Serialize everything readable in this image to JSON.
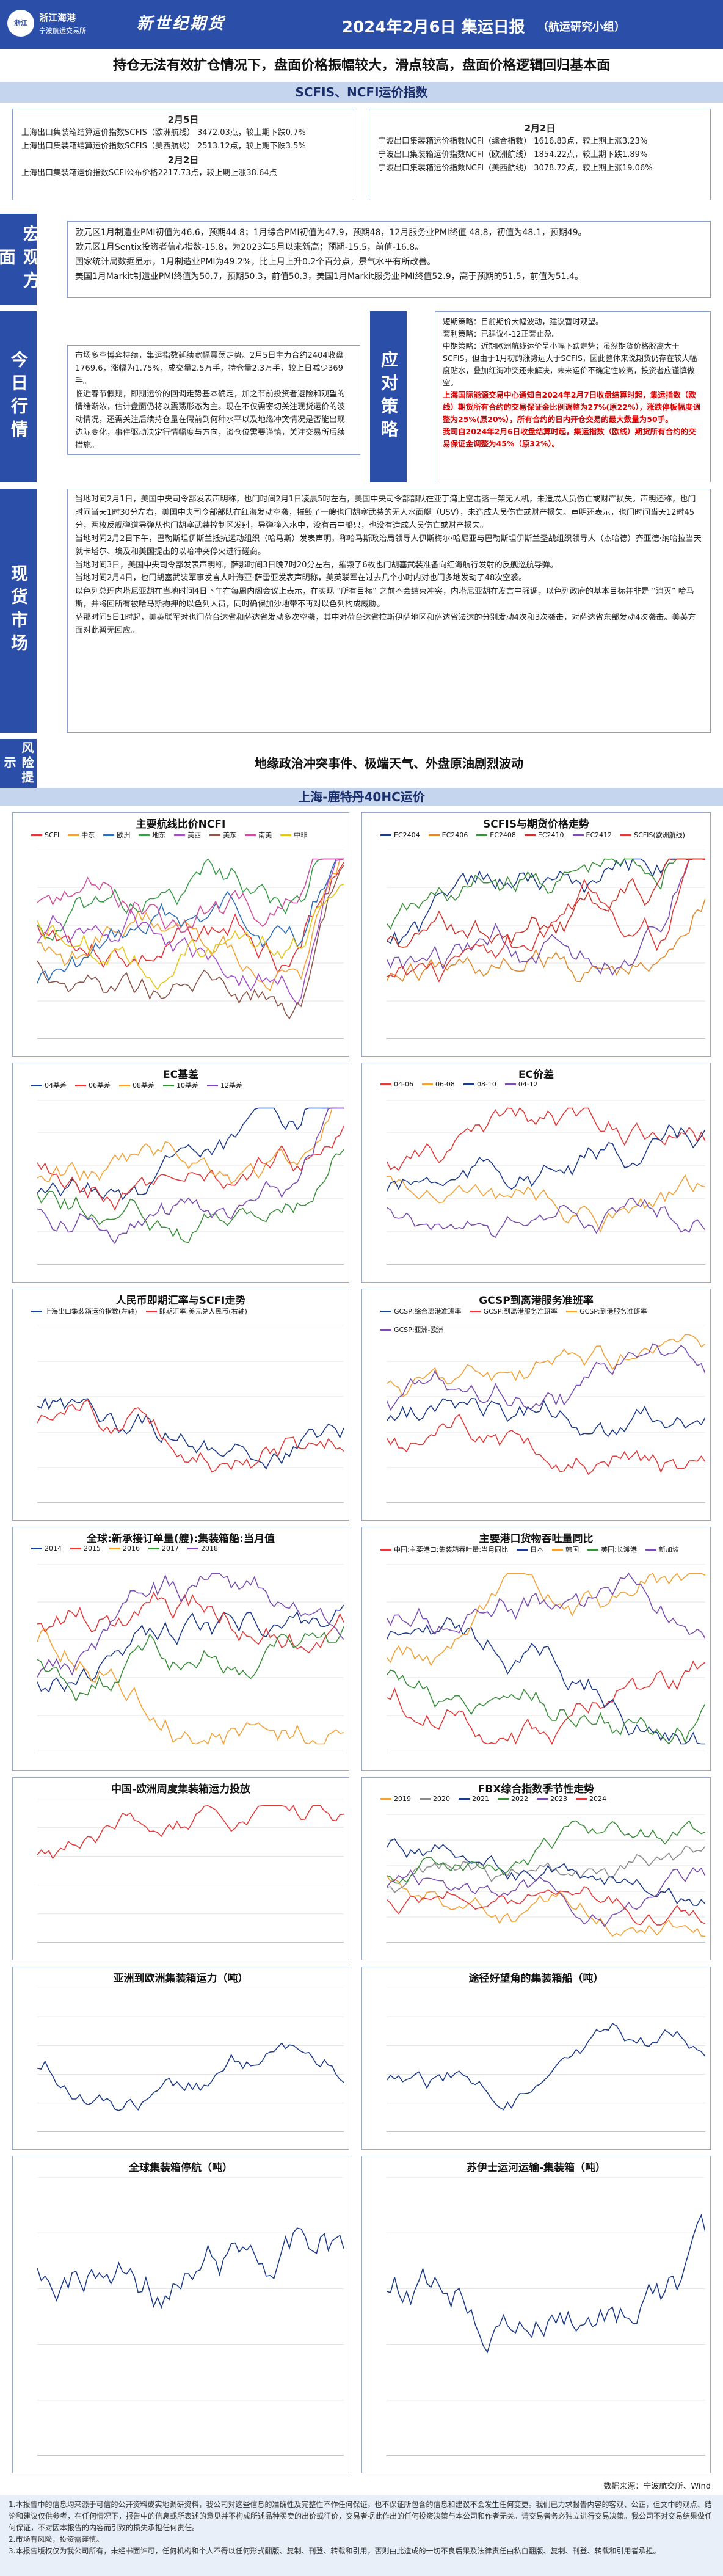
{
  "header": {
    "logo1_mark": "浙江",
    "logo1_name": "浙江海港",
    "logo1_sub": "宁波航运交易所",
    "logo2": "新世纪期货",
    "title": "2024年2月6日 集运日报",
    "subtitle": "（航运研究小组）"
  },
  "headline": "持仓无法有效扩仓情况下，盘面价格振幅较大，滑点较高，盘面价格逻辑回归基本面",
  "index_bar": "SCFIS、NCFI运价指数",
  "left_index": {
    "date1": "2月5日",
    "l1": "上海出口集装箱结算运价指数SCFIS（欧洲航线） 3472.03点，较上期下跌0.7%",
    "l2": "上海出口集装箱结算运价指数SCFIS（美西航线） 2513.12点，较上期下跌3.5%",
    "date2": "2月2日",
    "l3": "上海出口集装箱运价指数SCFI公布价格2217.73点，较上期上涨38.64点"
  },
  "right_index": {
    "date": "2月2日",
    "l1": "宁波出口集装箱运价指数NCFI（综合指数） 1616.83点，较上期上涨3.23%",
    "l2": "宁波出口集装箱运价指数NCFI（欧洲航线） 1854.22点，较上期下跌1.89%",
    "l3": "宁波出口集装箱运价指数NCFI（美西航线） 3078.72点，较上期上涨19.06%"
  },
  "macro": {
    "label": "宏观方面",
    "lines": [
      "欧元区1月制造业PMI初值为46.6，预期44.8；1月综合PMI初值为47.9，预期48，12月服务业PMI终值 48.8，初值为48.1，预期49。",
      "欧元区1月Sentix投资者信心指数-15.8，为2023年5月以来新高；预期-15.5，前值-16.8。",
      "国家统计局数据显示，1月制造业PMI为49.2%，比上月上升0.2个百分点，景气水平有所改善。",
      "美国1月Markit制造业PMI终值为50.7，预期50.3，前值50.3，美国1月Markit服务业PMI终值52.9，高于预期的51.5，前值为51.4。"
    ]
  },
  "today": {
    "label": "今日行情",
    "text": "市场多空博弈持续，集运指数延续宽幅震荡走势。2月5日主力合约2404收盘1769.6，涨幅为1.75%，成交量2.5万手，持仓量2.3万手，较上日减少369手。",
    "text2": "临近春节假期，即期运价的回调走势基本确定，加之节前投资者避险和观望的情绪渐浓，估计盘面仍将以震荡形态为主。现在不仅需密切关注现货运价的波动情况，还需关注后续持仓量在假前到何种水平以及地缘冲突情况是否能出现边际变化，事件驱动决定行情幅度与方向，谈仓位需要谨慎，关注交易所后续措施。"
  },
  "strategy": {
    "label": "应对策略",
    "l1": "短期策略：目前期价大幅波动，建议暂时观望。",
    "l2": "套利策略：已建议4-12正套止盈。",
    "l3": "中期策略：近期欧洲航线运价呈小幅下跌走势；虽然期货价格脱离大于SCFIS，但由于1月初的涨势远大于SCFIS，因此整体来说期货仍存在较大幅度贴水，叠加红海冲突还未解决，未来运价不确定性较高，投资者应谨慎做空。",
    "red1": "上海国际能源交易中心通知自2024年2月7日收盘结算时起，集运指数（欧线）期货所有合约的交易保证金比例调整为27%(原22%），涨跌停板幅度调整为25%(原20%），所有合约的日内开仓交易的最大数量为50手。",
    "red2": "我司自2024年2月6日收盘结算时起，集运指数（欧线）期货所有合约的交易保证金调整为45%（原32%）。"
  },
  "market": {
    "label": "现货市场",
    "lines": [
      "当地时间2月1日，美国中央司令部发表声明称，也门时间2月1日凌晨5时左右，美国中央司令部部队在亚丁湾上空击落一架无人机，未造成人员伤亡或财产损失。声明还称，也门时间当天1时30分左右，美国中央司令部部队在红海发动空袭，摧毁了一艘也门胡塞武装的无人水面艇（USV），未造成人员伤亡或财产损失。声明还表示，也门时间当天12时45分，两枚反舰弹道导弹从也门胡塞武装控制区发射，导弹撞入水中，没有击中船只，也没有造成人员伤亡或财产损失。",
      "当地时间2月2日下午，巴勒斯坦伊斯兰抵抗运动组织（哈马斯）发表声明，称哈马斯政治局领导人伊斯梅尔·哈尼亚与巴勒斯坦伊斯兰圣战组织领导人（杰哈德）齐亚德·纳哈拉当天就卡塔尔、埃及和美国提出的以哈冲突停火进行磋商。",
      "当地时间3日，美国中央司令部发表声明称，萨那时间3日晚7时20分左右，摧毁了6枚也门胡塞武装准备向红海航行发射的反舰巡航导弹。",
      "当地时间2月4日，也门胡塞武装军事发言人叶海亚·萨雷亚发表声明称，美英联军在过去几个小时内对也门多地发动了48次空袭。",
      "以色列总理内塔尼亚胡在当地时间4日下午在每周内阁会议上表示，在实现 “所有目标” 之前不会结束冲突，内塔尼亚胡在发言中强调，以色列政府的基本目标并非是 “消灭” 哈马斯，并将回所有被哈马斯拘押的以色列人员，同时确保加沙地带不再对以色列构成威胁。",
      "萨那时间5日1时起，美英联军对也门荷台达省和萨达省发动多次空袭，其中对荷台达省拉斯伊萨地区和萨达省法达的分别发动4次和3次袭击，对萨达省东部发动4次袭击。美英方面对此暂无回应。"
    ]
  },
  "risk": {
    "label": "风险提示",
    "text": "地缘政治冲突事件、极端天气、外盘原油剧烈波动"
  },
  "route_bar": "上海-鹿特丹40HC运价",
  "charts": {
    "c1": {
      "title": "主要航线比价NCFI",
      "legend": [
        "SCFI",
        "中东",
        "欧洲",
        "地东",
        "美西",
        "美东",
        "南美",
        "中非"
      ],
      "colors": [
        "#e4343a",
        "#f2a238",
        "#2d6fba",
        "#3b9b4a",
        "#a44fc5",
        "#8c564b",
        "#d14f9e",
        "#e6c619"
      ]
    },
    "c2": {
      "title": "SCFIS与期货价格走势",
      "legend": [
        "EC2404",
        "EC2406",
        "EC2408",
        "EC2410",
        "EC2412",
        "SCFIS(欧洲航线)"
      ],
      "colors": [
        "#1f3c88",
        "#e08a2b",
        "#3d8f3d",
        "#c8372d",
        "#7a4fb0",
        "#e13a3a"
      ]
    },
    "c3": {
      "title": "EC基差",
      "legend": [
        "04基差",
        "06基差",
        "08基差",
        "10基差",
        "12基差"
      ],
      "colors": [
        "#1f3c88",
        "#e13a3a",
        "#f2a238",
        "#3d8f3d",
        "#7a4fb0"
      ]
    },
    "c4": {
      "title": "EC价差",
      "legend": [
        "04-06",
        "06-08",
        "08-10",
        "04-12"
      ],
      "colors": [
        "#e13a3a",
        "#f2a238",
        "#1f3c88",
        "#7a4fb0"
      ]
    },
    "c5": {
      "title": "人民币即期汇率与SCFI走势",
      "legend": [
        "上海出口集装箱运价指数(左轴)",
        "即期汇率:美元兑人民币(右轴)"
      ],
      "colors": [
        "#1f3c88",
        "#e13a3a"
      ]
    },
    "c6": {
      "title": "GCSP到离港服务准班率",
      "legend": [
        "GCSP:综合离港准班率",
        "GCSP:到离港服务准班率",
        "GCSP:到港服务准班率",
        "GCSP:亚洲-欧洲"
      ],
      "colors": [
        "#1f3c88",
        "#e13a3a",
        "#f2a238",
        "#7a4fb0"
      ]
    },
    "c7": {
      "title": "全球:新承接订单量(艘):集装箱船:当月值",
      "legend": [
        "2014",
        "2015",
        "2016",
        "2017",
        "2018"
      ],
      "colors": [
        "#1f3c88",
        "#e13a3a",
        "#f2a238",
        "#3d8f3d",
        "#7a4fb0"
      ]
    },
    "c8": {
      "title": "主要港口货物吞吐量同比",
      "legend": [
        "中国:主要港口:集装箱吞吐量:当月同比",
        "日本",
        "韩国",
        "美国:长滩港",
        "新加坡"
      ],
      "colors": [
        "#e13a3a",
        "#1f3c88",
        "#f2a238",
        "#3d8f3d",
        "#7a4fb0"
      ]
    },
    "c9": {
      "title": "中国-欧洲周度集装箱运力投放",
      "legend": [],
      "colors": [
        "#e13a3a"
      ]
    },
    "c10": {
      "title": "FBX综合指数季节性走势",
      "legend": [
        "2019",
        "2020",
        "2021",
        "2022",
        "2023",
        "2024"
      ],
      "colors": [
        "#f2a238",
        "#8c8c8c",
        "#1f3c88",
        "#3d8f3d",
        "#7a4fb0",
        "#e13a3a"
      ]
    },
    "c11": {
      "title": "亚洲到欧洲集装箱运力（吨）",
      "legend": [],
      "colors": [
        "#1f3c88"
      ]
    },
    "c12": {
      "title": "途径好望角的集装箱船（吨）",
      "legend": [],
      "colors": [
        "#1f3c88"
      ]
    },
    "c13": {
      "title": "全球集装箱停航（吨）",
      "legend": [],
      "colors": [
        "#1f3c88"
      ]
    },
    "c14": {
      "title": "苏伊士运河运输-集装箱（吨）",
      "legend": [],
      "colors": [
        "#1f3c88"
      ]
    }
  },
  "source": "数据来源：宁波航交所、Wind",
  "disclaimer": [
    "1.本报告中的信息均来源于可信的公开资料或实地调研资料，我公司对这些信息的准确性及完整性不作任何保证，也不保证所包含的信息和建议不会发生任何变更。我们已力求报告内容的客观、公正，但文中的观点、结论和建议仅供参考，在任何情况下，报告中的信息或所表述的意见并不构成所述品种买卖的出价或征价，交易者据此作出的任何投资决策与本公司和作者无关。请交易者务必独立进行交易决策。我公司不对交易结果做任何保证，不对因本报告的内容而引致的损失承担任何责任。",
    "2.市场有风险，投资需谨慎。",
    "3.本报告版权仅为我公司所有，未经书面许可，任何机构和个人不得以任何形式翻版、复制、刊登、转载和引用，否则由此造成的一切不良后果及法律责任由私自翻版、复制、刊登、转载和引用者承担。"
  ]
}
